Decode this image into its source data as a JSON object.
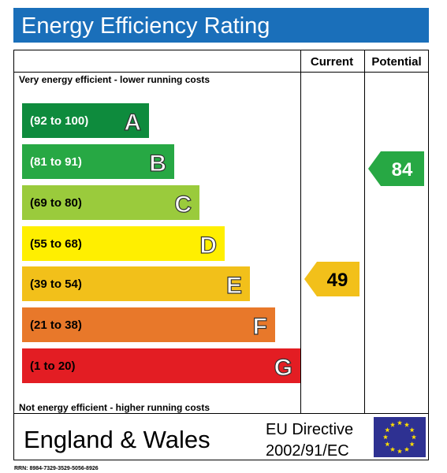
{
  "header": {
    "title": "Energy Efficiency Rating"
  },
  "table": {
    "columns": [
      "Current",
      "Potential"
    ],
    "top_note": "Very energy efficient - lower running costs",
    "bottom_note": "Not energy efficient - higher running costs",
    "bands": [
      {
        "range": "(92 to 100)",
        "letter": "A"
      },
      {
        "range": "(81 to 91)",
        "letter": "B"
      },
      {
        "range": "(69 to 80)",
        "letter": "C"
      },
      {
        "range": "(55 to 68)",
        "letter": "D"
      },
      {
        "range": "(39 to 54)",
        "letter": "E"
      },
      {
        "range": "(21 to 38)",
        "letter": "F"
      },
      {
        "range": "(1 to 20)",
        "letter": "G"
      }
    ],
    "current": 49,
    "potential": 84
  },
  "footer": {
    "region": "England & Wales",
    "directive_line1": "EU Directive",
    "directive_line2": "2002/91/EC"
  },
  "rrn": "RRN: 8984-7329-3529-5056-8926"
}
